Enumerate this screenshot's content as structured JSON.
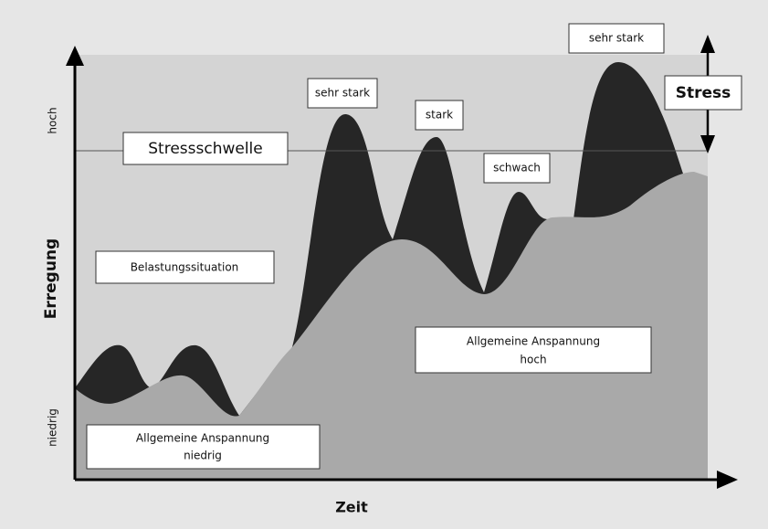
{
  "axes": {
    "y_high": "hoch",
    "y_low": "niedrig",
    "y_title": "Erregung",
    "x_title": "Zeit"
  },
  "threshold": "Stressschwelle",
  "stress": "Stress",
  "labels": {
    "situation": "Belastungssituation",
    "tension_low": [
      "Allgemeine Anspannung",
      "niedrig"
    ],
    "tension_high": [
      "Allgemeine Anspannung",
      "hoch"
    ]
  },
  "peaks": [
    "sehr stark",
    "stark",
    "schwach",
    "sehr stark"
  ]
}
